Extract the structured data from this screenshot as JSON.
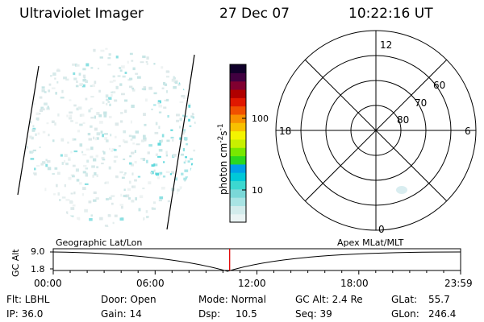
{
  "header": {
    "instrument": "Ultraviolet Imager",
    "date": "27 Dec 07",
    "time": "10:22:16 UT"
  },
  "colorbar": {
    "unit_label": "photon cm",
    "unit_exp1": "-2",
    "unit_mid": "s",
    "unit_exp2": "-1",
    "tick_labels": [
      "100",
      "10"
    ],
    "colors": [
      "#eaf4f4",
      "#d2ecec",
      "#a8e4e4",
      "#7ad8d8",
      "#3cd8d0",
      "#00c8d8",
      "#00a0e8",
      "#2ad820",
      "#78e800",
      "#c8f000",
      "#f4f400",
      "#f8c000",
      "#f89000",
      "#f05000",
      "#e01800",
      "#b00000",
      "#800030",
      "#400040",
      "#10002a"
    ]
  },
  "polar_plot": {
    "mlt_labels": {
      "top": "12",
      "bottom": "0",
      "left": "18",
      "right": "6"
    },
    "lat_labels": [
      "60",
      "70",
      "80"
    ]
  },
  "timeline": {
    "title_left": "Geographic Lat/Lon",
    "title_right": "Apex MLat/MLT",
    "axis_label": "GC Alt",
    "y_ticks": [
      "9.0",
      "1.8"
    ],
    "x_ticks": [
      "00:00",
      "06:00",
      "12:00",
      "18:00",
      "23:59"
    ],
    "current_time_fraction": 0.433
  },
  "status": {
    "flt": "Flt: LBHL",
    "ip": "IP: 36.0",
    "door": "Door: Open",
    "gain": "Gain: 14",
    "mode": "Mode: Normal",
    "dsp_label": "Dsp:",
    "dsp_value": "10.5",
    "gc_alt": "GC Alt: 2.4 Re",
    "seq": "Seq: 39",
    "glat_label": "GLat:",
    "glat_value": "55.7",
    "glon_label": "GLon:",
    "glon_value": "246.4"
  }
}
